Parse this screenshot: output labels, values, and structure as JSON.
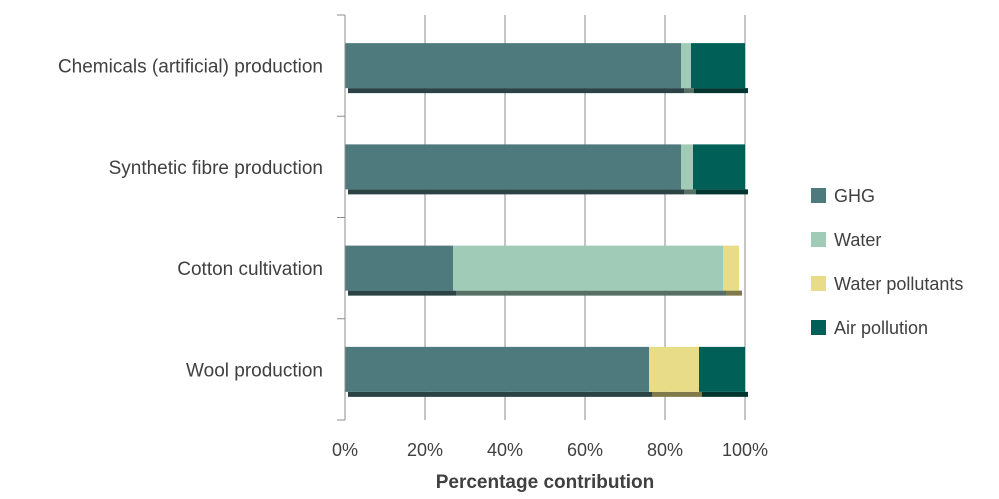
{
  "chart_data": {
    "type": "bar",
    "orientation": "horizontal",
    "stacked": "percent",
    "title": "",
    "xlabel": "Percentage contribution",
    "ylabel": "",
    "xlim": [
      0,
      100
    ],
    "x_ticks": [
      "0%",
      "20%",
      "40%",
      "60%",
      "80%",
      "100%"
    ],
    "categories": [
      "Chemicals (artificial) production",
      "Synthetic fibre production",
      "Cotton cultivation",
      "Wool production"
    ],
    "series": [
      {
        "name": "GHG",
        "color": "#4e7a7e",
        "values": [
          84,
          84,
          27,
          76
        ]
      },
      {
        "name": "Water",
        "color": "#9fcbb7",
        "values": [
          2.5,
          3,
          67.5,
          0
        ]
      },
      {
        "name": "Water pollutants",
        "color": "#e8dc88",
        "values": [
          0,
          0,
          4,
          12.5
        ]
      },
      {
        "name": "Air pollution",
        "color": "#006058",
        "values": [
          13.5,
          13,
          0,
          11.5
        ]
      }
    ],
    "gridlines": true,
    "legend_position": "right"
  }
}
